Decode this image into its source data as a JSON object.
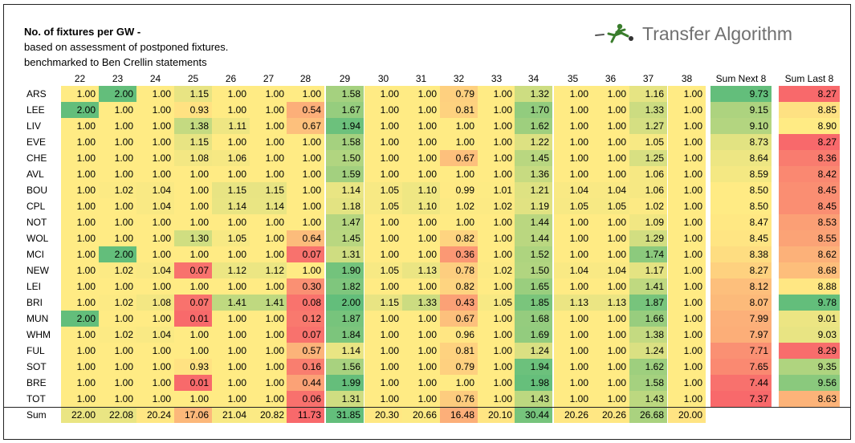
{
  "notes": {
    "title": "No. of fixtures per GW -",
    "line1": "based on assessment of postponed fixtures.",
    "line2": "benchmarked to Ben Crellin statements"
  },
  "logo": {
    "text": "Transfer Algorithm",
    "icon": "player-kicking-ball-icon"
  },
  "colors": {
    "red": "#f8696b",
    "yellow": "#ffeb84",
    "green": "#63be7b"
  },
  "chart_data": {
    "type": "table",
    "title": "No. of fixtures per GW -",
    "gameweeks": [
      "22",
      "23",
      "24",
      "25",
      "26",
      "27",
      "28",
      "29",
      "30",
      "31",
      "32",
      "33",
      "34",
      "35",
      "36",
      "37",
      "38"
    ],
    "summary_headers": [
      "Sum Next 8",
      "Sum Last 8"
    ],
    "teams": [
      "ARS",
      "LEE",
      "LIV",
      "EVE",
      "CHE",
      "AVL",
      "BOU",
      "CPL",
      "NOT",
      "WOL",
      "MCI",
      "NEW",
      "LEI",
      "BRI",
      "MUN",
      "WHM",
      "FUL",
      "SOT",
      "BRE",
      "TOT"
    ],
    "values": [
      [
        1.0,
        2.0,
        1.0,
        1.15,
        1.0,
        1.0,
        1.0,
        1.58,
        1.0,
        1.0,
        0.79,
        1.0,
        1.32,
        1.0,
        1.0,
        1.16,
        1.0
      ],
      [
        2.0,
        1.0,
        1.0,
        0.93,
        1.0,
        1.0,
        0.54,
        1.67,
        1.0,
        1.0,
        0.81,
        1.0,
        1.7,
        1.0,
        1.0,
        1.33,
        1.0
      ],
      [
        1.0,
        1.0,
        1.0,
        1.38,
        1.11,
        1.0,
        0.67,
        1.94,
        1.0,
        1.0,
        1.0,
        1.0,
        1.62,
        1.0,
        1.0,
        1.27,
        1.0
      ],
      [
        1.0,
        1.0,
        1.0,
        1.15,
        1.0,
        1.0,
        1.0,
        1.58,
        1.0,
        1.0,
        1.0,
        1.0,
        1.22,
        1.0,
        1.0,
        1.05,
        1.0
      ],
      [
        1.0,
        1.0,
        1.0,
        1.08,
        1.06,
        1.0,
        1.0,
        1.5,
        1.0,
        1.0,
        0.67,
        1.0,
        1.45,
        1.0,
        1.0,
        1.25,
        1.0
      ],
      [
        1.0,
        1.0,
        1.0,
        1.0,
        1.0,
        1.0,
        1.0,
        1.59,
        1.0,
        1.0,
        1.0,
        1.0,
        1.36,
        1.0,
        1.0,
        1.06,
        1.0
      ],
      [
        1.0,
        1.02,
        1.04,
        1.0,
        1.15,
        1.15,
        1.0,
        1.14,
        1.05,
        1.1,
        0.99,
        1.01,
        1.21,
        1.04,
        1.04,
        1.06,
        1.0
      ],
      [
        1.0,
        1.0,
        1.04,
        1.0,
        1.14,
        1.14,
        1.0,
        1.18,
        1.05,
        1.1,
        1.02,
        1.02,
        1.19,
        1.05,
        1.05,
        1.02,
        1.0
      ],
      [
        1.0,
        1.0,
        1.0,
        1.0,
        1.0,
        1.0,
        1.0,
        1.47,
        1.0,
        1.0,
        1.0,
        1.0,
        1.44,
        1.0,
        1.0,
        1.09,
        1.0
      ],
      [
        1.0,
        1.0,
        1.0,
        1.3,
        1.05,
        1.0,
        0.64,
        1.45,
        1.0,
        1.0,
        0.82,
        1.0,
        1.44,
        1.0,
        1.0,
        1.29,
        1.0
      ],
      [
        1.0,
        2.0,
        1.0,
        1.0,
        1.0,
        1.0,
        0.07,
        1.31,
        1.0,
        1.0,
        0.36,
        1.0,
        1.52,
        1.0,
        1.0,
        1.74,
        1.0
      ],
      [
        1.0,
        1.02,
        1.04,
        0.07,
        1.12,
        1.12,
        1.0,
        1.9,
        1.05,
        1.13,
        0.78,
        1.02,
        1.5,
        1.04,
        1.04,
        1.17,
        1.0
      ],
      [
        1.0,
        1.0,
        1.0,
        1.0,
        1.0,
        1.0,
        0.3,
        1.82,
        1.0,
        1.0,
        0.82,
        1.0,
        1.65,
        1.0,
        1.0,
        1.41,
        1.0
      ],
      [
        1.0,
        1.02,
        1.08,
        0.07,
        1.41,
        1.41,
        0.08,
        2.0,
        1.15,
        1.33,
        0.43,
        1.05,
        1.85,
        1.13,
        1.13,
        1.87,
        1.0
      ],
      [
        2.0,
        1.0,
        1.0,
        0.01,
        1.0,
        1.0,
        0.12,
        1.87,
        1.0,
        1.0,
        0.67,
        1.0,
        1.68,
        1.0,
        1.0,
        1.66,
        1.0
      ],
      [
        1.0,
        1.02,
        1.04,
        1.0,
        1.0,
        1.0,
        0.07,
        1.84,
        1.0,
        1.0,
        0.96,
        1.0,
        1.69,
        1.0,
        1.0,
        1.38,
        1.0
      ],
      [
        1.0,
        1.0,
        1.0,
        1.0,
        1.0,
        1.0,
        0.57,
        1.14,
        1.0,
        1.0,
        0.81,
        1.0,
        1.24,
        1.0,
        1.0,
        1.24,
        1.0
      ],
      [
        1.0,
        1.0,
        1.0,
        0.93,
        1.0,
        1.0,
        0.16,
        1.56,
        1.0,
        1.0,
        0.79,
        1.0,
        1.94,
        1.0,
        1.0,
        1.62,
        1.0
      ],
      [
        1.0,
        1.0,
        1.0,
        0.01,
        1.0,
        1.0,
        0.44,
        1.99,
        1.0,
        1.0,
        1.0,
        1.0,
        1.98,
        1.0,
        1.0,
        1.58,
        1.0
      ],
      [
        1.0,
        1.0,
        1.0,
        1.0,
        1.0,
        1.0,
        0.06,
        1.31,
        1.0,
        1.0,
        0.76,
        1.0,
        1.43,
        1.0,
        1.0,
        1.43,
        1.0
      ]
    ],
    "sum_next_8": [
      9.73,
      9.15,
      9.1,
      8.73,
      8.64,
      8.59,
      8.5,
      8.5,
      8.47,
      8.45,
      8.38,
      8.27,
      8.12,
      8.07,
      7.99,
      7.97,
      7.71,
      7.65,
      7.44,
      7.37
    ],
    "sum_last_8": [
      8.27,
      8.85,
      8.9,
      8.27,
      8.36,
      8.42,
      8.45,
      8.45,
      8.53,
      8.55,
      8.62,
      8.68,
      8.88,
      9.78,
      9.01,
      9.03,
      8.29,
      9.35,
      9.56,
      8.63
    ],
    "sum_row_label": "Sum",
    "column_sums": [
      22.0,
      22.08,
      20.24,
      17.06,
      21.04,
      20.82,
      11.73,
      31.85,
      20.3,
      20.66,
      16.48,
      20.1,
      30.44,
      20.26,
      20.26,
      26.68,
      20.0
    ]
  }
}
